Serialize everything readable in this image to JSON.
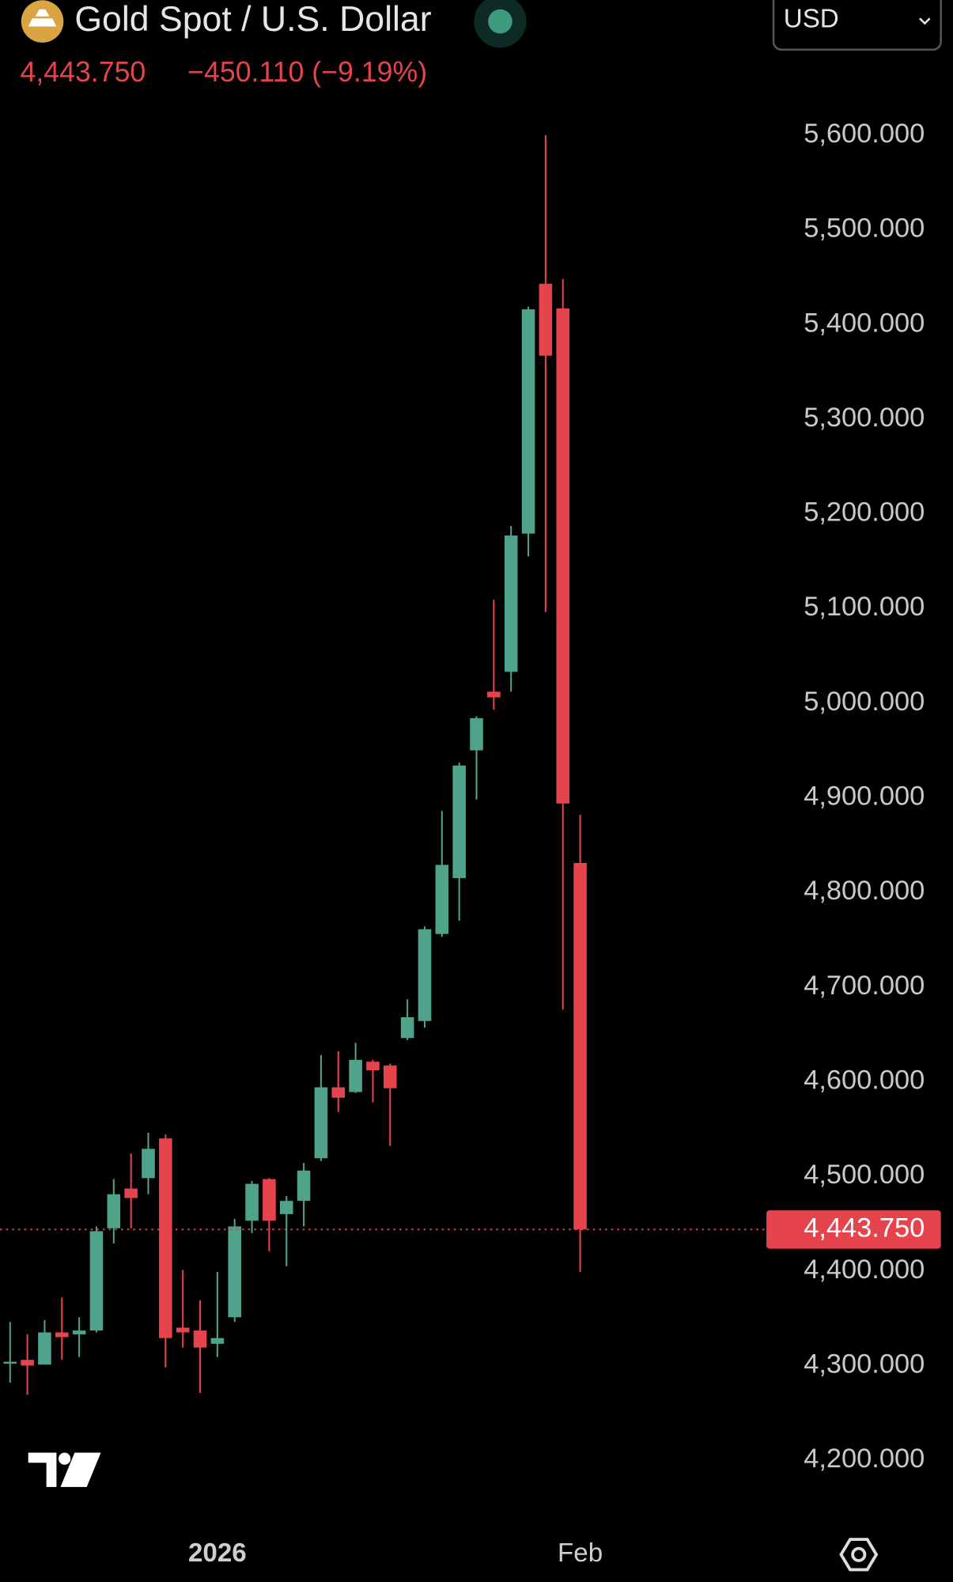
{
  "chart_data": {
    "type": "candlestick",
    "title": "Gold Spot / U.S. Dollar",
    "price_label": "4,443.750",
    "change_label": "−450.110 (−9.19%)",
    "currency": "USD",
    "categories": [
      null,
      null,
      null,
      null,
      null,
      null,
      null,
      null,
      null,
      null,
      null,
      null,
      "2026",
      null,
      null,
      null,
      null,
      null,
      null,
      null,
      null,
      null,
      null,
      null,
      null,
      null,
      null,
      null,
      null,
      null,
      null,
      null,
      null,
      "Feb"
    ],
    "open": [
      4302,
      4306,
      4301,
      4335,
      4333,
      4337,
      4445,
      4487,
      4498,
      4540,
      4340,
      4337,
      4323,
      4351,
      4453,
      4497,
      4460,
      4474,
      4519,
      4594,
      4589,
      4621,
      4617,
      4646,
      4664,
      4756,
      4815,
      4950,
      5012,
      5033,
      5179,
      5443,
      5417,
      4831
    ],
    "high": [
      4346,
      4333,
      4348,
      4372,
      4351,
      4447,
      4497,
      4524,
      4546,
      4544,
      4401,
      4369,
      4399,
      4455,
      4495,
      4498,
      4479,
      4514,
      4628,
      4632,
      4641,
      4623,
      4619,
      4687,
      4764,
      4886,
      4937,
      4986,
      5109,
      5187,
      5419,
      5600,
      5448,
      4882
    ],
    "low": [
      4282,
      4269,
      4301,
      4306,
      4309,
      4335,
      4429,
      4445,
      4481,
      4298,
      4319,
      4271,
      4309,
      4346,
      4440,
      4421,
      4405,
      4447,
      4516,
      4568,
      4588,
      4578,
      4532,
      4644,
      4657,
      4753,
      4770,
      4898,
      4993,
      5012,
      5155,
      5096,
      4676,
      4399
    ],
    "close": [
      4304,
      4300,
      4335,
      4330,
      4337,
      4442,
      4481,
      4477,
      4529,
      4329,
      4335,
      4319,
      4329,
      4447,
      4492,
      4453,
      4474,
      4506,
      4594,
      4583,
      4623,
      4612,
      4593,
      4668,
      4761,
      4829,
      4934,
      4984,
      5006,
      5177,
      5416,
      5367,
      4893.86,
      4443.75
    ],
    "up_color": "#4fa38b",
    "down_color": "#e5444d",
    "ylim": [
      4144,
      5636
    ],
    "yticks": [
      {
        "value": 4200,
        "label": "4,200.000"
      },
      {
        "value": 4300,
        "label": "4,300.000"
      },
      {
        "value": 4400,
        "label": "4,400.000"
      },
      {
        "value": 4500,
        "label": "4,500.000"
      },
      {
        "value": 4600,
        "label": "4,600.000"
      },
      {
        "value": 4700,
        "label": "4,700.000"
      },
      {
        "value": 4800,
        "label": "4,800.000"
      },
      {
        "value": 4900,
        "label": "4,900.000"
      },
      {
        "value": 5000,
        "label": "5,000.000"
      },
      {
        "value": 5100,
        "label": "5,100.000"
      },
      {
        "value": 5200,
        "label": "5,200.000"
      },
      {
        "value": 5300,
        "label": "5,300.000"
      },
      {
        "value": 5400,
        "label": "5,400.000"
      },
      {
        "value": 5500,
        "label": "5,500.000"
      },
      {
        "value": 5600,
        "label": "5,600.000"
      }
    ],
    "grid": false
  }
}
